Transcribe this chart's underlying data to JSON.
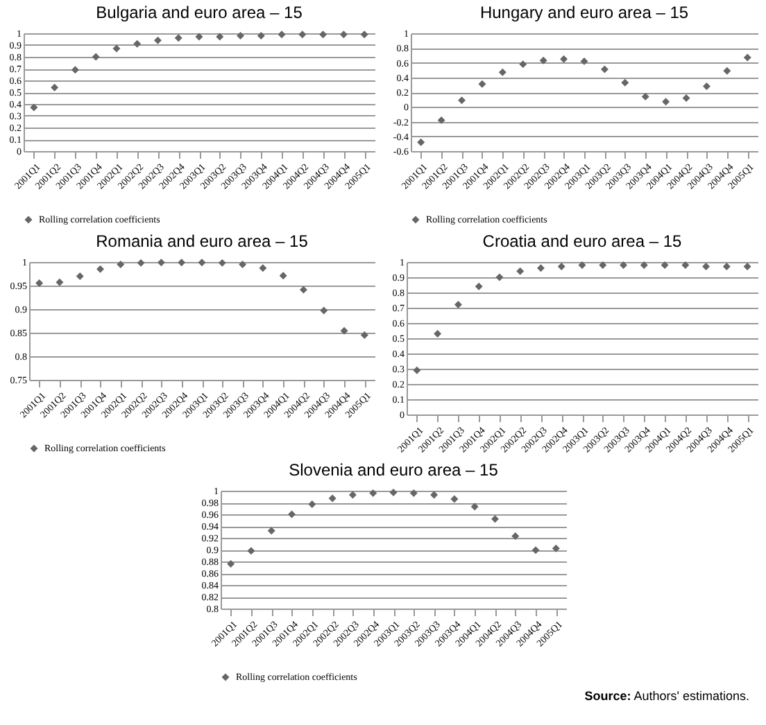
{
  "chart_data": [
    {
      "type": "scatter",
      "title": "Bulgaria and euro area – 15",
      "categories": [
        "2001Q1",
        "2001Q2",
        "2001Q3",
        "2001Q4",
        "2002Q1",
        "2002Q2",
        "2002Q3",
        "2002Q4",
        "2003Q1",
        "2003Q2",
        "2003Q3",
        "2003Q4",
        "2004Q1",
        "2004Q2",
        "2004Q3",
        "2004Q4",
        "2005Q1"
      ],
      "series": [
        {
          "name": "Rolling correlation coefficients",
          "color": "#666666",
          "values": [
            0.37,
            0.54,
            0.69,
            0.8,
            0.87,
            0.91,
            0.94,
            0.96,
            0.97,
            0.97,
            0.98,
            0.98,
            0.99,
            0.99,
            0.99,
            0.99,
            0.99
          ]
        }
      ],
      "ylim": [
        0,
        1
      ],
      "yticks": [
        0,
        0.1,
        0.2,
        0.3,
        0.4,
        0.5,
        0.6,
        0.7,
        0.8,
        0.9,
        1
      ],
      "grid": "y",
      "legend": "bottom",
      "marker": "diamond"
    },
    {
      "type": "scatter",
      "title": "Hungary and euro area – 15",
      "categories": [
        "2001Q1",
        "2001Q2",
        "2001Q3",
        "2001Q4",
        "2002Q1",
        "2002Q2",
        "2002Q3",
        "2002Q4",
        "2003Q1",
        "2003Q2",
        "2003Q3",
        "2003Q4",
        "2004Q1",
        "2004Q2",
        "2004Q3",
        "2004Q4",
        "2005Q1"
      ],
      "series": [
        {
          "name": "Rolling correlation coefficients",
          "color": "#666666",
          "values": [
            -0.48,
            -0.18,
            0.09,
            0.31,
            0.47,
            0.58,
            0.63,
            0.65,
            0.62,
            0.51,
            0.33,
            0.14,
            0.07,
            0.12,
            0.28,
            0.49,
            0.67
          ]
        }
      ],
      "ylim": [
        -0.6,
        1
      ],
      "yticks": [
        -0.6,
        -0.4,
        -0.2,
        0,
        0.2,
        0.4,
        0.6,
        0.8,
        1
      ],
      "grid": "y",
      "legend": "bottom",
      "marker": "diamond"
    },
    {
      "type": "scatter",
      "title": "Romania and euro area – 15",
      "categories": [
        "2001Q1",
        "2001Q2",
        "2001Q3",
        "2001Q4",
        "2002Q1",
        "2002Q2",
        "2002Q3",
        "2002Q4",
        "2003Q1",
        "2003Q2",
        "2003Q3",
        "2003Q4",
        "2004Q1",
        "2004Q2",
        "2004Q3",
        "2004Q4",
        "2005Q1"
      ],
      "series": [
        {
          "name": "Rolling correlation coefficients",
          "color": "#666666",
          "values": [
            0.955,
            0.957,
            0.97,
            0.985,
            0.995,
            0.998,
            0.999,
            0.999,
            0.999,
            0.998,
            0.995,
            0.987,
            0.971,
            0.941,
            0.897,
            0.854,
            0.845
          ]
        }
      ],
      "ylim": [
        0.75,
        1
      ],
      "yticks": [
        0.75,
        0.8,
        0.85,
        0.9,
        0.95,
        1
      ],
      "grid": "y",
      "legend": "bottom",
      "marker": "diamond"
    },
    {
      "type": "scatter",
      "title": "Croatia and euro area – 15",
      "categories": [
        "2001Q1",
        "2001Q2",
        "2001Q3",
        "2001Q4",
        "2002Q1",
        "2002Q2",
        "2002Q3",
        "2002Q4",
        "2003Q1",
        "2003Q2",
        "2003Q3",
        "2003Q4",
        "2004Q1",
        "2004Q2",
        "2004Q3",
        "2004Q4",
        "2005Q1"
      ],
      "series": [
        {
          "color": "#666666",
          "values": [
            0.29,
            0.53,
            0.72,
            0.84,
            0.9,
            0.94,
            0.96,
            0.97,
            0.98,
            0.98,
            0.98,
            0.98,
            0.98,
            0.98,
            0.97,
            0.97,
            0.97
          ]
        }
      ],
      "ylim": [
        0,
        1
      ],
      "yticks": [
        0,
        0.1,
        0.2,
        0.3,
        0.4,
        0.5,
        0.6,
        0.7,
        0.8,
        0.9,
        1
      ],
      "grid": "y",
      "marker": "diamond"
    },
    {
      "type": "scatter",
      "title": "Slovenia and euro area – 15",
      "categories": [
        "2001Q1",
        "2001Q2",
        "2001Q3",
        "2001Q4",
        "2002Q1",
        "2002Q2",
        "2002Q3",
        "2002Q4",
        "2003Q1",
        "2003Q2",
        "2003Q3",
        "2003Q4",
        "2004Q1",
        "2004Q2",
        "2004Q3",
        "2004Q4",
        "2005Q1"
      ],
      "series": [
        {
          "name": "Rolling correlation coefficients",
          "color": "#666666",
          "values": [
            0.876,
            0.898,
            0.932,
            0.96,
            0.977,
            0.987,
            0.993,
            0.996,
            0.997,
            0.996,
            0.993,
            0.986,
            0.973,
            0.952,
            0.923,
            0.899,
            0.902
          ]
        }
      ],
      "ylim": [
        0.8,
        1
      ],
      "yticks": [
        0.8,
        0.82,
        0.84,
        0.86,
        0.88,
        0.9,
        0.92,
        0.94,
        0.96,
        0.98,
        1
      ],
      "grid": "y",
      "legend": "bottom",
      "marker": "diamond",
      "annotations": [
        "Source: Authors' estimations."
      ]
    }
  ]
}
